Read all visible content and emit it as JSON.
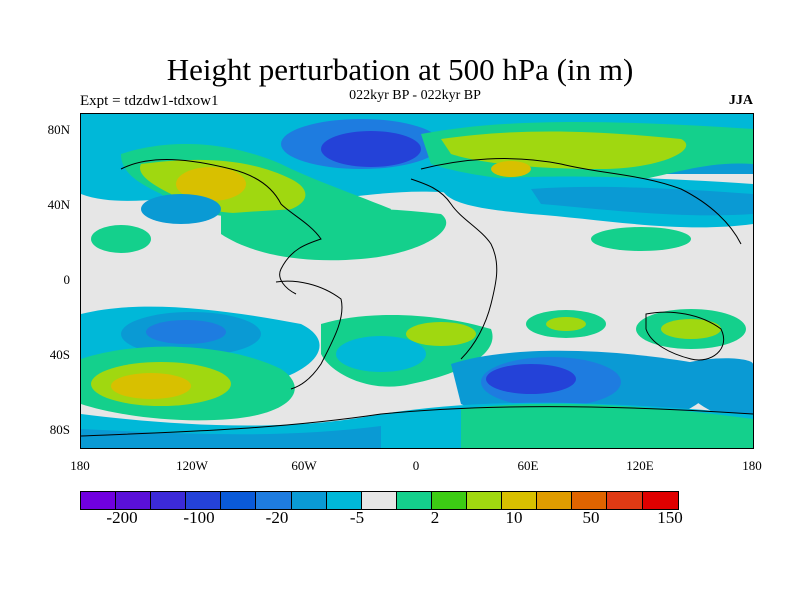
{
  "header": {
    "title": "Height perturbation at 500 hPa (in m)",
    "experiment": "Expt = tdzdw1-tdxow1",
    "period": "022kyr BP - 022kyr BP",
    "season": "JJA"
  },
  "axes": {
    "y_labels": [
      "80N",
      "40N",
      "0",
      "40S",
      "80S"
    ],
    "x_labels": [
      "180",
      "120W",
      "60W",
      "0",
      "60E",
      "120E",
      "180"
    ]
  },
  "colorbar": {
    "colors": [
      "#7000e0",
      "#5a10d8",
      "#3c2ad8",
      "#2442d8",
      "#0a5ad8",
      "#1e7ce0",
      "#0a9ad4",
      "#00b8d8",
      "#e6e6e6",
      "#14d08c",
      "#3ccc14",
      "#a0d810",
      "#d8c000",
      "#e09c00",
      "#e06400",
      "#e03a14",
      "#e00000"
    ],
    "labels": [
      "-200",
      "-100",
      "-20",
      "-5",
      "2",
      "10",
      "50",
      "150"
    ]
  },
  "map_fields": {
    "background": "#e6e6e6",
    "cyan": "#00b8d8",
    "lightblue": "#0a9ad4",
    "blue": "#1e7ce0",
    "darkblue": "#0a5ad8",
    "navy": "#2442d8",
    "green": "#14d08c",
    "lime": "#a0d810",
    "yellow": "#d8c000"
  }
}
